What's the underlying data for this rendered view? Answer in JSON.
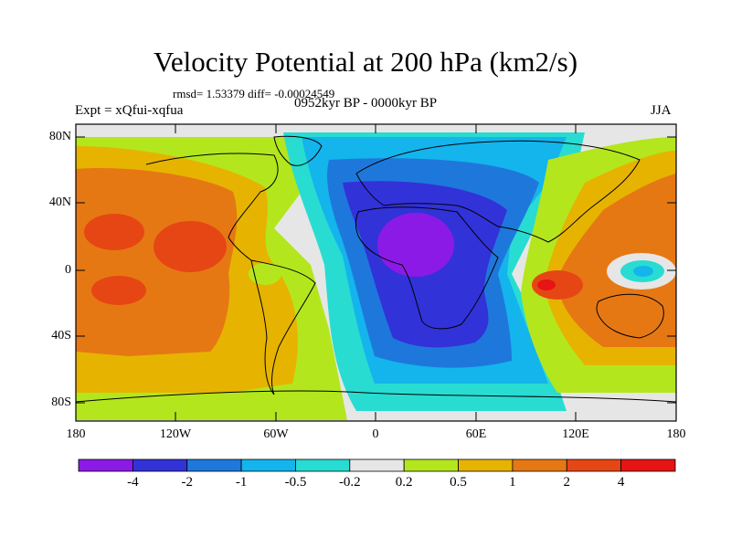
{
  "title": "Velocity Potential at 200 hPa (km2/s)",
  "stats": "rmsd= 1.53379 diff= -0.00024549",
  "experiment": "Expt = xQfui-xqfua",
  "period": "0952kyr BP - 0000kyr BP",
  "season": "JJA",
  "map": {
    "y_ticks": [
      "80N",
      "40N",
      "0",
      "40S",
      "80S"
    ],
    "x_ticks": [
      "180",
      "120W",
      "60W",
      "0",
      "60E",
      "120E",
      "180"
    ]
  },
  "colorbar": {
    "labels": [
      "-4",
      "-2",
      "-1",
      "-0.5",
      "-0.2",
      "0.2",
      "0.5",
      "1",
      "2",
      "4"
    ],
    "colors": [
      "#8c1ae6",
      "#3232d9",
      "#1e78dc",
      "#14b4ec",
      "#28dcd2",
      "#e6e6e6",
      "#b4e61e",
      "#e6b400",
      "#e67814",
      "#e64614",
      "#e61414"
    ]
  },
  "palette": {
    "strong_negative": "#8c1ae6",
    "negative": "#3232d9",
    "mid_negative": "#1e78dc",
    "weak_negative": "#14b4ec",
    "slight_negative": "#28dcd2",
    "neutral": "#e6e6e6",
    "slight_positive": "#b4e61e",
    "weak_positive": "#e6b400",
    "mid_positive": "#e67814",
    "positive": "#e64614",
    "strong_positive": "#e61414"
  }
}
